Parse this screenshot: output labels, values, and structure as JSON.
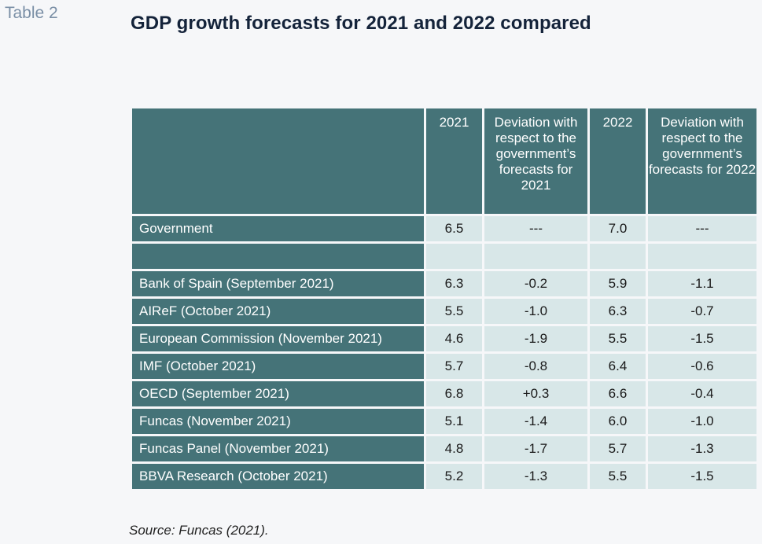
{
  "table_label": "Table 2",
  "title": "GDP growth forecasts for 2021 and 2022 compared",
  "columns": [
    "",
    "2021",
    "Deviation with respect to the government’s forecasts for 2021",
    "2022",
    "Deviation with respect to the government’s forecasts for 2022"
  ],
  "rows": [
    {
      "label": "Government",
      "v2021": "6.5",
      "dev2021": "---",
      "v2022": "7.0",
      "dev2022": "---"
    },
    {
      "label": "",
      "v2021": "",
      "dev2021": "",
      "v2022": "",
      "dev2022": ""
    },
    {
      "label": "Bank of Spain (September 2021)",
      "v2021": "6.3",
      "dev2021": "-0.2",
      "v2022": "5.9",
      "dev2022": "-1.1"
    },
    {
      "label": "AIReF (October 2021)",
      "v2021": "5.5",
      "dev2021": "-1.0",
      "v2022": "6.3",
      "dev2022": "-0.7"
    },
    {
      "label": "European Commission (November 2021)",
      "v2021": "4.6",
      "dev2021": "-1.9",
      "v2022": "5.5",
      "dev2022": "-1.5"
    },
    {
      "label": "IMF (October 2021)",
      "v2021": "5.7",
      "dev2021": "-0.8",
      "v2022": "6.4",
      "dev2022": "-0.6"
    },
    {
      "label": "OECD (September 2021)",
      "v2021": "6.8",
      "dev2021": "+0.3",
      "v2022": "6.6",
      "dev2022": "-0.4"
    },
    {
      "label": "Funcas (November 2021)",
      "v2021": "5.1",
      "dev2021": "-1.4",
      "v2022": "6.0",
      "dev2022": "-1.0"
    },
    {
      "label": "Funcas Panel (November 2021)",
      "v2021": "4.8",
      "dev2021": "-1.7",
      "v2022": "5.7",
      "dev2022": "-1.3"
    },
    {
      "label": "BBVA Research (October 2021)",
      "v2021": "5.2",
      "dev2021": "-1.3",
      "v2022": "5.5",
      "dev2022": "-1.5"
    }
  ],
  "source": "Source: Funcas (2021)."
}
